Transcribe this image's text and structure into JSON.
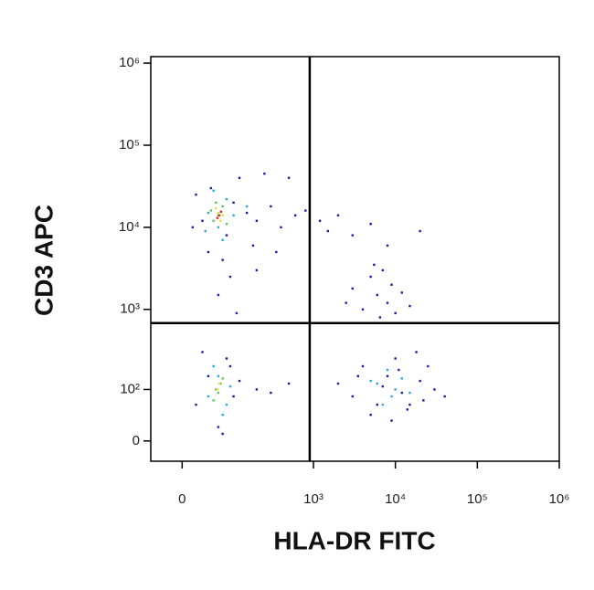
{
  "chart_data": {
    "type": "scatter",
    "x_label": "HLA-DR FITC",
    "y_label": "CD3 APC",
    "scale": "arcsinh",
    "cofactor": 50,
    "xlim": [
      -50,
      1000000
    ],
    "ylim": [
      -30,
      1200000
    ],
    "xticks": [
      0,
      {
        "value": 1000,
        "label": "10³"
      },
      {
        "value": 10000,
        "label": "10⁴"
      },
      {
        "value": 100000,
        "label": "10⁵"
      },
      {
        "value": 1000000,
        "label": "10⁶"
      }
    ],
    "yticks": [
      0,
      {
        "value": 100,
        "label": "10²"
      },
      {
        "value": 1000,
        "label": "10³"
      },
      {
        "value": 10000,
        "label": "10⁴"
      },
      {
        "value": 100000,
        "label": "10⁵"
      },
      {
        "value": 1000000,
        "label": "10⁶"
      }
    ],
    "gate_x": 900,
    "gate_y": 680,
    "series": [
      {
        "color": "#1c1ca8",
        "x": [
          30,
          45,
          80,
          100,
          150,
          200,
          300,
          400,
          600,
          800,
          1200,
          1500,
          2000,
          3000,
          5000,
          8000,
          20000,
          40,
          70,
          120,
          250,
          500,
          90,
          60,
          110,
          200,
          350,
          20,
          15,
          180,
          3000,
          5000,
          6000,
          7000,
          8000,
          4000,
          9000,
          12000,
          6500,
          10000,
          15000,
          5500,
          2500,
          2000,
          3000,
          4000,
          6000,
          8000,
          10000,
          12000,
          15000,
          20000,
          25000,
          30000,
          40000,
          5000,
          9000,
          18000,
          3500,
          7000,
          11000,
          14000,
          22000,
          20,
          40,
          80,
          100,
          60,
          30,
          120,
          200,
          70,
          90,
          300,
          500
        ],
        "y": [
          12000,
          30000,
          8000,
          20000,
          15000,
          12000,
          18000,
          10000,
          14000,
          16000,
          12000,
          9000,
          14000,
          8000,
          11000,
          6000,
          9000,
          5000,
          4000,
          40000,
          45000,
          40000,
          2500,
          1500,
          900,
          3000,
          5000,
          25000,
          10000,
          6000,
          1800,
          2500,
          1500,
          3000,
          1200,
          1000,
          2000,
          1600,
          800,
          900,
          1100,
          3500,
          1200,
          120,
          80,
          200,
          60,
          150,
          250,
          90,
          60,
          130,
          200,
          100,
          80,
          40,
          30,
          300,
          150,
          110,
          180,
          50,
          70,
          60,
          150,
          250,
          80,
          20,
          300,
          130,
          100,
          10,
          200,
          90,
          120
        ]
      },
      {
        "color": "#2fa8d8",
        "x": [
          40,
          60,
          80,
          50,
          100,
          70,
          150,
          35,
          40,
          60,
          80,
          50,
          70,
          90,
          6000,
          9000,
          12000,
          8000,
          10000,
          15000,
          7000,
          5000
        ],
        "y": [
          15000,
          10000,
          22000,
          28000,
          14000,
          7000,
          18000,
          9000,
          80,
          150,
          60,
          200,
          40,
          110,
          120,
          80,
          140,
          180,
          100,
          90,
          60,
          130
        ]
      },
      {
        "color": "#5cc85c",
        "x": [
          50,
          70,
          60,
          80,
          55,
          45,
          55,
          65,
          50,
          60,
          70
        ],
        "y": [
          12000,
          18000,
          14000,
          11000,
          20000,
          16000,
          100,
          120,
          70,
          90,
          140
        ]
      },
      {
        "color": "#e8e040",
        "x": [
          60,
          65,
          55,
          70,
          58,
          62
        ],
        "y": [
          15000,
          12000,
          17000,
          14000,
          100,
          120
        ]
      },
      {
        "color": "#e03020",
        "x": [
          62,
          58,
          66
        ],
        "y": [
          14000,
          13000,
          15500
        ]
      }
    ]
  }
}
